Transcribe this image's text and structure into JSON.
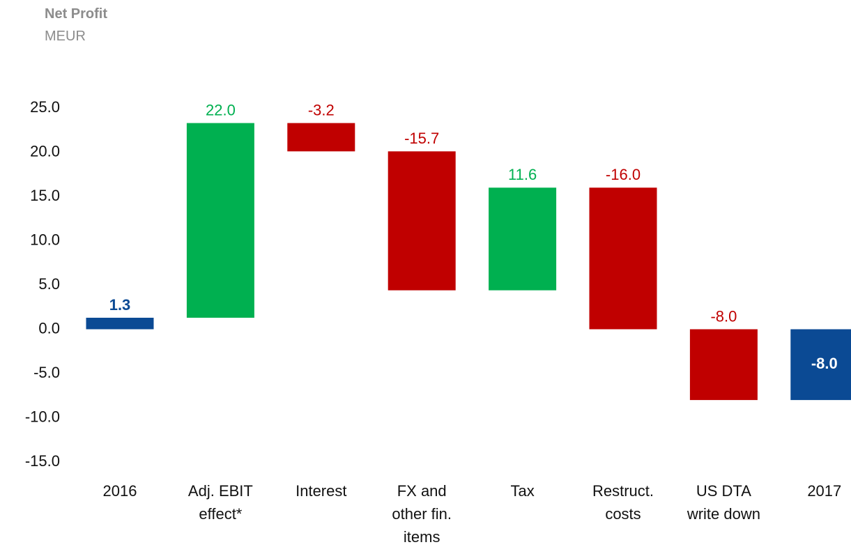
{
  "chart_data": {
    "type": "waterfall",
    "title": "Net Profit",
    "subtitle": "MEUR",
    "categories": [
      "2016",
      "Adj. EBIT effect*",
      "Interest",
      "FX and other fin. items",
      "Tax",
      "Restruct. costs",
      "US DTA write down",
      "2017"
    ],
    "measure": [
      "absolute",
      "relative",
      "relative",
      "relative",
      "relative",
      "relative",
      "relative",
      "total"
    ],
    "values": [
      1.3,
      22.0,
      -3.2,
      -15.7,
      11.6,
      -16.0,
      -8.0,
      -8.0
    ],
    "value_labels": [
      "1.3",
      "22.0",
      "-3.2",
      "-15.7",
      "11.6",
      "-16.0",
      "-8.0",
      "-8.0"
    ],
    "colors": {
      "total": "#0b4a94",
      "increase": "#00b050",
      "decrease": "#c00000"
    },
    "ylim": [
      -15,
      25
    ],
    "yticks": [
      {
        "value": 25,
        "label": "25.0"
      },
      {
        "value": 20,
        "label": "20.0"
      },
      {
        "value": 15,
        "label": "15.0"
      },
      {
        "value": 10,
        "label": "10.0"
      },
      {
        "value": 5,
        "label": "5.0"
      },
      {
        "value": 0,
        "label": "0.0"
      },
      {
        "value": -5,
        "label": "-5.0"
      },
      {
        "value": -10,
        "label": "-10.0"
      },
      {
        "value": -15,
        "label": "-15.0"
      }
    ],
    "grid": false
  }
}
